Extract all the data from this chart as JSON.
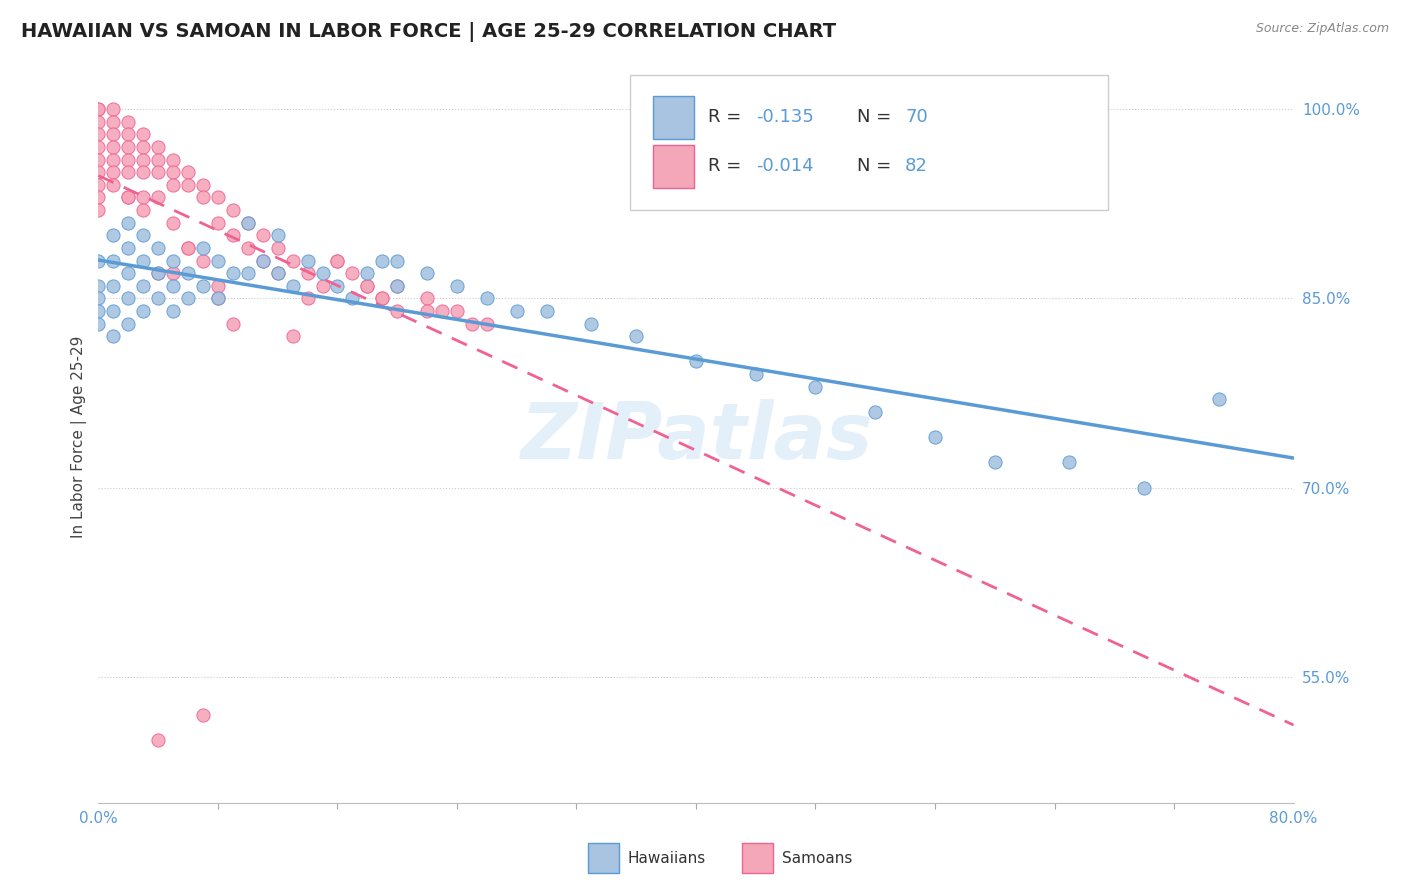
{
  "title": "HAWAIIAN VS SAMOAN IN LABOR FORCE | AGE 25-29 CORRELATION CHART",
  "source": "Source: ZipAtlas.com",
  "ylabel": "In Labor Force | Age 25-29",
  "xlim": [
    0.0,
    0.8
  ],
  "ylim": [
    0.45,
    1.03
  ],
  "yticks": [
    0.55,
    0.7,
    0.85,
    1.0
  ],
  "ytick_labels": [
    "55.0%",
    "70.0%",
    "85.0%",
    "100.0%"
  ],
  "hawaiian_color": "#a8c4e0",
  "samoan_color": "#f4a7b9",
  "trendline_hawaiian_color": "#5b9bd5",
  "trendline_samoan_color": "#f06292",
  "watermark": "ZIPatlas",
  "hawaiian_x": [
    0.0,
    0.0,
    0.0,
    0.0,
    0.0,
    0.01,
    0.01,
    0.01,
    0.01,
    0.01,
    0.02,
    0.02,
    0.02,
    0.02,
    0.02,
    0.03,
    0.03,
    0.03,
    0.03,
    0.04,
    0.04,
    0.04,
    0.05,
    0.05,
    0.05,
    0.06,
    0.06,
    0.07,
    0.07,
    0.08,
    0.08,
    0.09,
    0.1,
    0.1,
    0.11,
    0.12,
    0.12,
    0.13,
    0.14,
    0.15,
    0.16,
    0.17,
    0.18,
    0.19,
    0.2,
    0.2,
    0.22,
    0.24,
    0.26,
    0.28,
    0.3,
    0.33,
    0.36,
    0.4,
    0.44,
    0.48,
    0.52,
    0.56,
    0.6,
    0.65,
    0.7,
    0.75
  ],
  "hawaiian_y": [
    0.88,
    0.86,
    0.85,
    0.84,
    0.83,
    0.9,
    0.88,
    0.86,
    0.84,
    0.82,
    0.91,
    0.89,
    0.87,
    0.85,
    0.83,
    0.9,
    0.88,
    0.86,
    0.84,
    0.89,
    0.87,
    0.85,
    0.88,
    0.86,
    0.84,
    0.87,
    0.85,
    0.89,
    0.86,
    0.88,
    0.85,
    0.87,
    0.91,
    0.87,
    0.88,
    0.9,
    0.87,
    0.86,
    0.88,
    0.87,
    0.86,
    0.85,
    0.87,
    0.88,
    0.88,
    0.86,
    0.87,
    0.86,
    0.85,
    0.84,
    0.84,
    0.83,
    0.82,
    0.8,
    0.79,
    0.78,
    0.76,
    0.74,
    0.72,
    0.72,
    0.7,
    0.77
  ],
  "samoan_x": [
    0.0,
    0.0,
    0.0,
    0.0,
    0.0,
    0.0,
    0.0,
    0.0,
    0.0,
    0.0,
    0.01,
    0.01,
    0.01,
    0.01,
    0.01,
    0.01,
    0.01,
    0.02,
    0.02,
    0.02,
    0.02,
    0.02,
    0.02,
    0.03,
    0.03,
    0.03,
    0.03,
    0.03,
    0.04,
    0.04,
    0.04,
    0.04,
    0.05,
    0.05,
    0.05,
    0.06,
    0.06,
    0.07,
    0.07,
    0.08,
    0.08,
    0.09,
    0.1,
    0.11,
    0.12,
    0.13,
    0.14,
    0.15,
    0.16,
    0.17,
    0.18,
    0.19,
    0.2,
    0.22,
    0.24,
    0.26,
    0.05,
    0.1,
    0.07,
    0.04,
    0.09,
    0.22,
    0.25,
    0.08,
    0.03,
    0.06,
    0.02,
    0.11,
    0.05,
    0.08,
    0.06,
    0.14,
    0.2,
    0.18,
    0.12,
    0.09,
    0.16,
    0.04,
    0.07,
    0.23,
    0.19,
    0.13
  ],
  "samoan_y": [
    1.0,
    1.0,
    0.99,
    0.98,
    0.97,
    0.96,
    0.95,
    0.94,
    0.93,
    0.92,
    1.0,
    0.99,
    0.98,
    0.97,
    0.96,
    0.95,
    0.94,
    0.99,
    0.98,
    0.97,
    0.96,
    0.95,
    0.93,
    0.98,
    0.97,
    0.96,
    0.95,
    0.93,
    0.97,
    0.96,
    0.95,
    0.93,
    0.96,
    0.95,
    0.94,
    0.95,
    0.94,
    0.94,
    0.93,
    0.93,
    0.91,
    0.92,
    0.91,
    0.9,
    0.89,
    0.88,
    0.87,
    0.86,
    0.88,
    0.87,
    0.86,
    0.85,
    0.86,
    0.85,
    0.84,
    0.83,
    0.91,
    0.89,
    0.88,
    0.87,
    0.9,
    0.84,
    0.83,
    0.85,
    0.92,
    0.89,
    0.93,
    0.88,
    0.87,
    0.86,
    0.89,
    0.85,
    0.84,
    0.86,
    0.87,
    0.83,
    0.88,
    0.5,
    0.52,
    0.84,
    0.85,
    0.82
  ]
}
